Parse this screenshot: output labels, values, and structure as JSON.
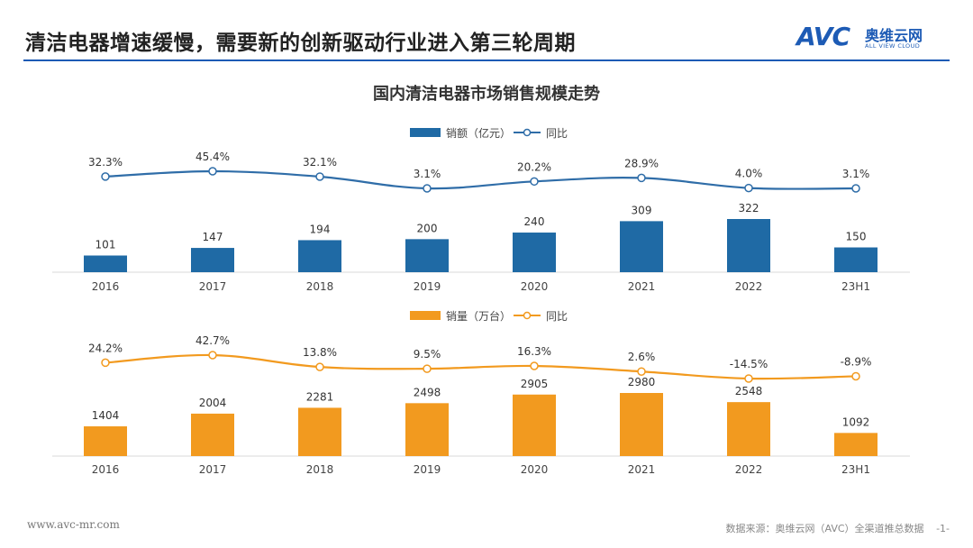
{
  "header": {
    "title": "清洁电器增速缓慢，需要新的创新驱动行业进入第三轮周期",
    "logo_mark": "AVC",
    "logo_cn": "奥维云网",
    "logo_en": "ALL VIEW CLOUD"
  },
  "footer": {
    "url": "www.avc-mr.com",
    "source": "数据来源：奥维云网（AVC）全渠道推总数据",
    "page": "-1-"
  },
  "colors": {
    "accent": "#1d5bb5",
    "sales_bar": "#1f6aa5",
    "volume_bar": "#f29a1f"
  },
  "chart_data": [
    {
      "type": "bar",
      "title": "国内清洁电器市场销售规模走势",
      "categories": [
        "2016",
        "2017",
        "2018",
        "2019",
        "2020",
        "2021",
        "2022",
        "23H1"
      ],
      "series": [
        {
          "name": "销额（亿元）",
          "kind": "bar",
          "values": [
            101,
            147,
            194,
            200,
            240,
            309,
            322,
            150
          ]
        },
        {
          "name": "同比",
          "kind": "line",
          "values": [
            32.3,
            45.4,
            32.1,
            3.1,
            20.2,
            28.9,
            4.0,
            3.1
          ],
          "labels": [
            "32.3%",
            "45.4%",
            "32.1%",
            "3.1%",
            "20.2%",
            "28.9%",
            "4.0%",
            "3.1%"
          ]
        }
      ],
      "legend": "top-center"
    },
    {
      "type": "bar",
      "categories": [
        "2016",
        "2017",
        "2018",
        "2019",
        "2020",
        "2021",
        "2022",
        "23H1"
      ],
      "series": [
        {
          "name": "销量（万台）",
          "kind": "bar",
          "values": [
            1404,
            2004,
            2281,
            2498,
            2905,
            2980,
            2548,
            1092
          ]
        },
        {
          "name": "同比",
          "kind": "line",
          "values": [
            24.2,
            42.7,
            13.8,
            9.5,
            16.3,
            2.6,
            -14.5,
            -8.9
          ],
          "labels": [
            "24.2%",
            "42.7%",
            "13.8%",
            "9.5%",
            "16.3%",
            "2.6%",
            "-14.5%",
            "-8.9%"
          ]
        }
      ],
      "legend": "top-center"
    }
  ]
}
